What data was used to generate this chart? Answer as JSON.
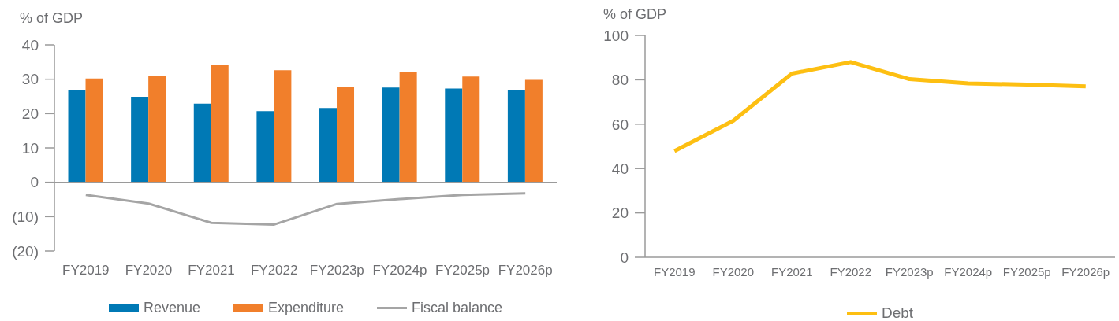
{
  "chart_data": [
    {
      "type": "bar",
      "ylabel": "% of GDP",
      "categories": [
        "FY2019",
        "FY2020",
        "FY2021",
        "FY2022",
        "FY2023p",
        "FY2024p",
        "FY2025p",
        "FY2026p"
      ],
      "series": [
        {
          "name": "Revenue",
          "color": "#0079b5",
          "values": [
            26.7,
            24.9,
            22.9,
            20.7,
            21.6,
            27.6,
            27.3,
            26.9
          ]
        },
        {
          "name": "Expenditure",
          "color": "#f17f2b",
          "values": [
            30.2,
            30.9,
            34.3,
            32.6,
            27.8,
            32.2,
            30.8,
            29.8
          ]
        },
        {
          "name": "Fiscal balance",
          "type": "line",
          "color": "#a5a5a5",
          "values": [
            -3.7,
            -6.2,
            -11.8,
            -12.3,
            -6.3,
            -4.9,
            -3.7,
            -3.2
          ]
        }
      ],
      "ylim": [
        -20,
        40
      ],
      "yticks": [
        {
          "value": -20,
          "label": "(20)"
        },
        {
          "value": -10,
          "label": "(10)"
        },
        0,
        10,
        20,
        30,
        40
      ],
      "ref_lines": [
        {
          "axis": "y",
          "value": 0,
          "color": "#9a9a9a"
        }
      ],
      "grid": false,
      "legend": "bottom",
      "marker": "none"
    },
    {
      "type": "line",
      "ylabel": "% of GDP",
      "categories": [
        "FY2019",
        "FY2020",
        "FY2021",
        "FY2022",
        "FY2023p",
        "FY2024p",
        "FY2025p",
        "FY2026p"
      ],
      "series": [
        {
          "name": "Debt",
          "color": "#fdbf12",
          "values": [
            47.9,
            61.5,
            82.8,
            88.0,
            80.3,
            78.4,
            77.8,
            77.0
          ]
        }
      ],
      "ylim": [
        0,
        100
      ],
      "yticks": [
        0,
        20,
        40,
        60,
        80,
        100
      ],
      "grid": false,
      "legend": "bottom",
      "marker": "none"
    }
  ]
}
